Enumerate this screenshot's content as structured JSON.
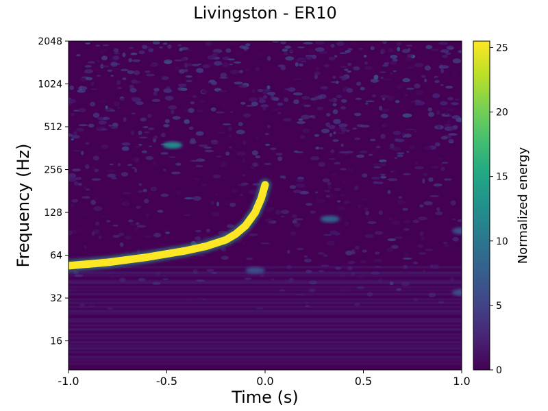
{
  "chart_data": {
    "type": "heatmap",
    "title": "Livingston - ER10",
    "xlabel": "Time (s)",
    "ylabel": "Frequency (Hz)",
    "xlim": [
      -1.0,
      1.0
    ],
    "xticks": [
      -1.0,
      -0.5,
      0.0,
      0.5,
      1.0
    ],
    "xtick_labels": [
      "-1.0",
      "-0.5",
      "0.0",
      "0.5",
      "1.0"
    ],
    "yscale": "log2",
    "ylim": [
      10,
      2048
    ],
    "yticks": [
      16,
      32,
      64,
      128,
      256,
      512,
      1024,
      2048
    ],
    "ytick_labels": [
      "16",
      "32",
      "64",
      "128",
      "256",
      "512",
      "1024",
      "2048"
    ],
    "colorbar": {
      "label": "Normalized energy",
      "range": [
        0,
        25.5
      ],
      "ticks": [
        0,
        5,
        10,
        15,
        20,
        25
      ],
      "tick_labels": [
        "0",
        "5",
        "10",
        "15",
        "20",
        "25"
      ],
      "colormap": "viridis"
    },
    "chirp_track": {
      "time": [
        -1.0,
        -0.8,
        -0.6,
        -0.4,
        -0.3,
        -0.2,
        -0.15,
        -0.1,
        -0.05,
        -0.02,
        0.0
      ],
      "frequency": [
        54,
        57,
        62,
        69,
        74,
        82,
        90,
        103,
        128,
        160,
        200
      ]
    },
    "features": [
      {
        "t": -0.47,
        "f": 380,
        "energy": 12
      },
      {
        "t": 0.33,
        "f": 115,
        "energy": 8
      },
      {
        "t": -0.05,
        "f": 50,
        "energy": 6
      },
      {
        "t": 1.0,
        "f": 35,
        "energy": 6
      },
      {
        "t": 1.0,
        "f": 95,
        "energy": 6
      }
    ]
  }
}
